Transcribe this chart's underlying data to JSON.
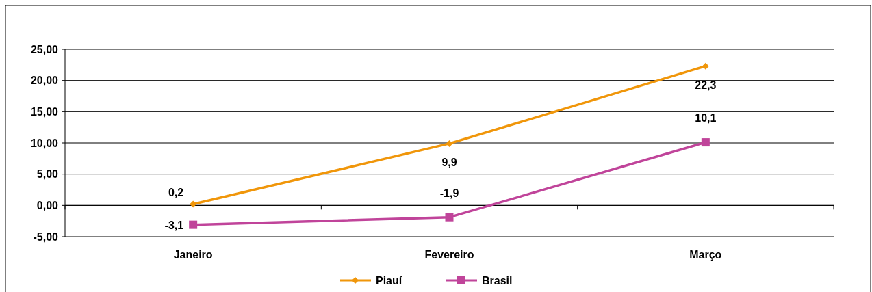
{
  "chart_data": {
    "type": "line",
    "categories": [
      "Janeiro",
      "Fevereiro",
      "Março"
    ],
    "series": [
      {
        "name": "Piauí",
        "color": "#f0960a",
        "marker": "diamond",
        "values": [
          0.2,
          9.9,
          22.3
        ],
        "value_labels": [
          "0,2",
          "9,9",
          "22,3"
        ]
      },
      {
        "name": "Brasil",
        "color": "#c0449a",
        "marker": "square",
        "values": [
          -3.1,
          -1.9,
          10.1
        ],
        "value_labels": [
          "-3,1",
          "-1,9",
          "10,1"
        ]
      }
    ],
    "ylim": [
      -5,
      25
    ],
    "yticks": [
      {
        "value": -5,
        "label": "-5,00"
      },
      {
        "value": 0,
        "label": "0,00"
      },
      {
        "value": 5,
        "label": "5,00"
      },
      {
        "value": 10,
        "label": "10,00"
      },
      {
        "value": 15,
        "label": "15,00"
      },
      {
        "value": 20,
        "label": "20,00"
      },
      {
        "value": 25,
        "label": "25,00"
      }
    ],
    "grid": "y",
    "legend": "bottom"
  }
}
